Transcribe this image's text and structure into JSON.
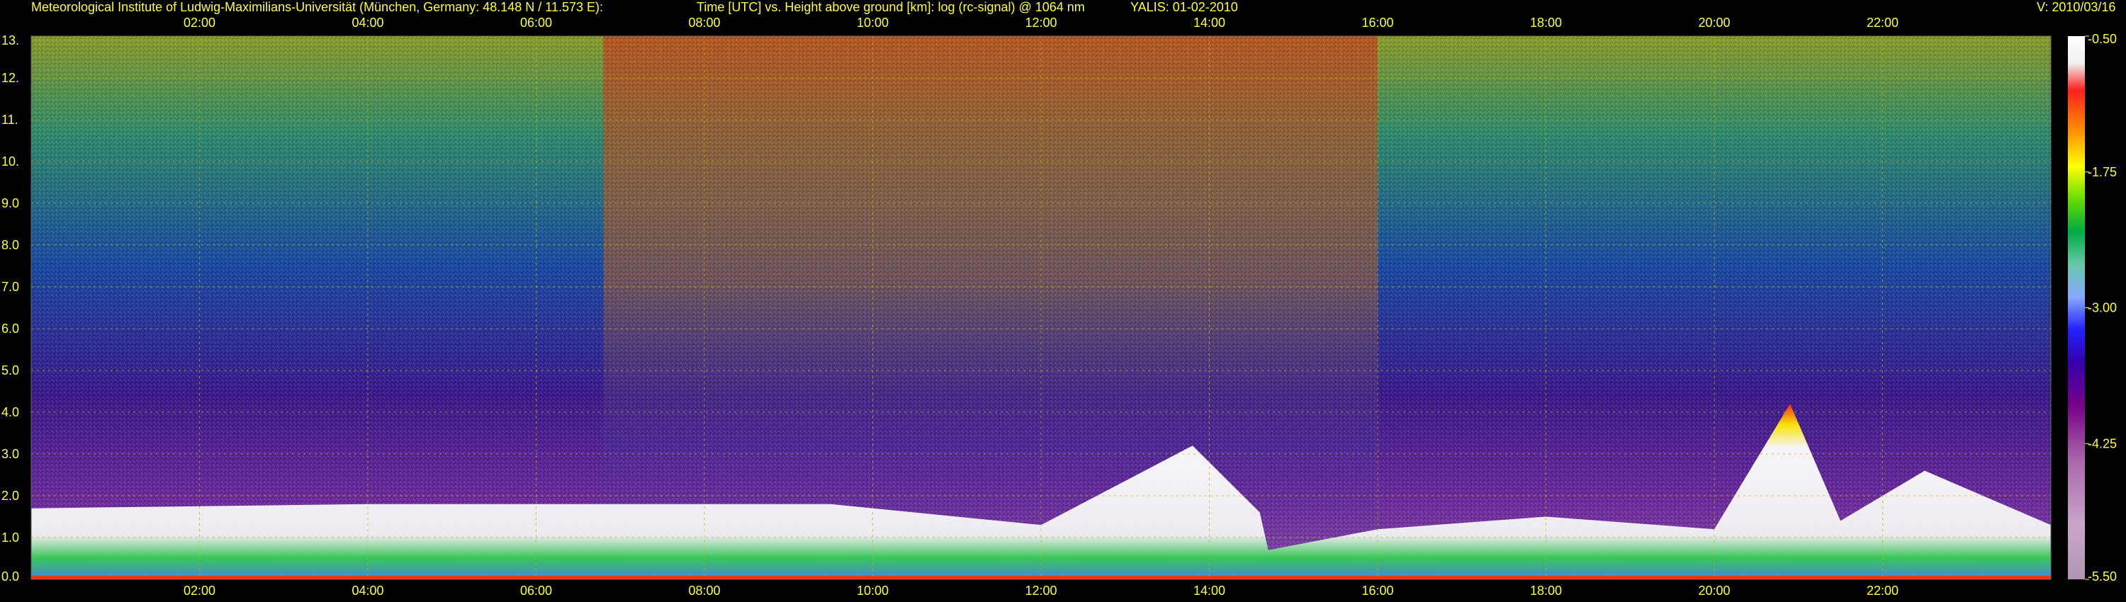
{
  "header": {
    "institute": "Meteorological Institute of Ludwig-Maximilians-Universität (München, Germany: 48.148 N / 11.573 E):",
    "description": "Time [UTC] vs. Height above ground [km]: log (rc-signal) @ 1064 nm",
    "instrument": "YALIS: 01-02-2010",
    "version": "V: 2010/03/16"
  },
  "colors": {
    "background": "#000000",
    "text": "#ffff33",
    "grid": "#c8b400"
  },
  "chart_data": {
    "type": "heatmap",
    "title": "Time [UTC] vs. Height above ground [km]: log (rc-signal) @ 1064 nm",
    "xlabel": "",
    "ylabel": "",
    "x_range_hours": [
      0,
      24
    ],
    "x_ticks": [
      "02:00",
      "04:00",
      "06:00",
      "08:00",
      "10:00",
      "12:00",
      "14:00",
      "16:00",
      "18:00",
      "20:00",
      "22:00"
    ],
    "x_tick_hours": [
      2,
      4,
      6,
      8,
      10,
      12,
      14,
      16,
      18,
      20,
      22
    ],
    "ylim": [
      0,
      13
    ],
    "y_ticks": [
      "0.0",
      "1.0",
      "2.0",
      "3.0",
      "4.0",
      "5.0",
      "6.0",
      "7.0",
      "8.0",
      "9.0",
      "10.",
      "11.",
      "12.",
      "13."
    ],
    "y_tick_values": [
      0,
      1,
      2,
      3,
      4,
      5,
      6,
      7,
      8,
      9,
      10,
      11,
      12,
      13
    ],
    "grid": true,
    "colorbar": {
      "range": [
        -5.5,
        -0.5
      ],
      "tick_labels": [
        "-0.50",
        "-1.75",
        "-3.00",
        "-4.25",
        "-5.50"
      ],
      "tick_values": [
        -0.5,
        -1.75,
        -3.0,
        -4.25,
        -5.5
      ],
      "placement": "right"
    },
    "boundary_layer_top_km": [
      {
        "t": 0.0,
        "h": 1.7
      },
      {
        "t": 2.0,
        "h": 1.75
      },
      {
        "t": 4.0,
        "h": 1.8
      },
      {
        "t": 6.0,
        "h": 1.8
      },
      {
        "t": 8.0,
        "h": 1.8
      },
      {
        "t": 9.5,
        "h": 1.8
      },
      {
        "t": 11.0,
        "h": 1.5
      },
      {
        "t": 12.0,
        "h": 1.3
      },
      {
        "t": 13.8,
        "h": 3.2
      },
      {
        "t": 14.6,
        "h": 1.6
      },
      {
        "t": 14.7,
        "h": 0.7
      },
      {
        "t": 16.0,
        "h": 1.2
      },
      {
        "t": 18.0,
        "h": 1.5
      },
      {
        "t": 20.0,
        "h": 1.2
      },
      {
        "t": 20.9,
        "h": 4.2
      },
      {
        "t": 21.5,
        "h": 1.4
      },
      {
        "t": 22.5,
        "h": 2.6
      },
      {
        "t": 24.0,
        "h": 1.3
      }
    ]
  }
}
